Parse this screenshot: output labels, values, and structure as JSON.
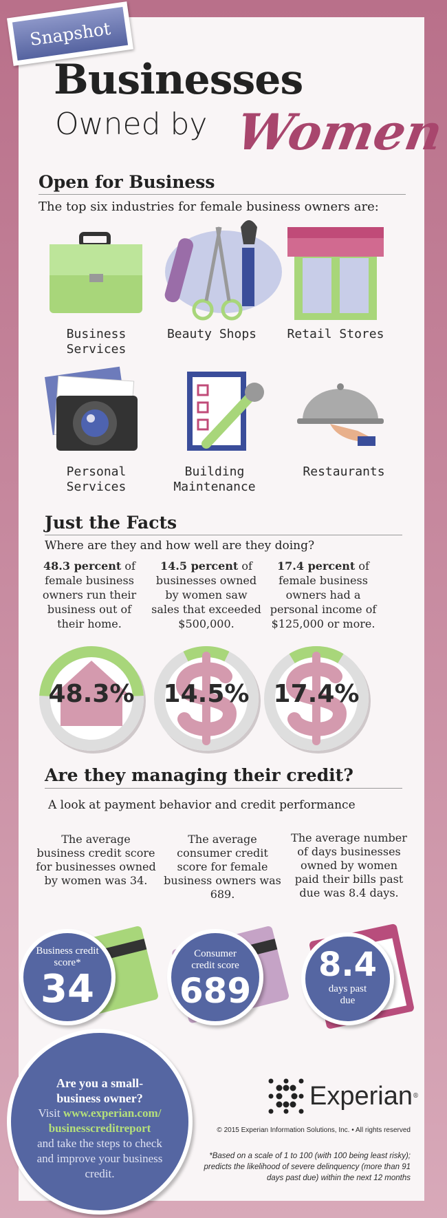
{
  "header": {
    "tag": "Snapshot",
    "title_line1": "Businesses",
    "title_line2": "Owned by",
    "title_script": "Women"
  },
  "open": {
    "heading": "Open for Business",
    "subtitle": "The top six industries for female business owners are:",
    "industries": [
      {
        "label": "Business Services",
        "icon": "briefcase-icon"
      },
      {
        "label": "Beauty Shops",
        "icon": "comb-scissors-brush-icon"
      },
      {
        "label": "Retail Stores",
        "icon": "storefront-icon"
      },
      {
        "label": "Personal Services",
        "icon": "camera-icon"
      },
      {
        "label": "Building Maintenance",
        "icon": "clipboard-wrench-icon"
      },
      {
        "label": "Restaurants",
        "icon": "serving-cloche-icon"
      }
    ]
  },
  "facts": {
    "heading": "Just the Facts",
    "subtitle": "Where are they and how well are they doing?",
    "items": [
      {
        "bold": "48.3 percent",
        "text": " of female business owners run their business out of their home.",
        "value": "48.3%",
        "percent": 48.3,
        "icon": "house-icon"
      },
      {
        "bold": "14.5 percent",
        "text": " of businesses owned by women saw sales that exceeded $500,000.",
        "value": "14.5%",
        "percent": 14.5,
        "icon": "dollar-icon"
      },
      {
        "bold": "17.4 percent",
        "text": " of female business owners had a personal income of $125,000 or more.",
        "value": "17.4%",
        "percent": 17.4,
        "icon": "dollar-icon"
      }
    ]
  },
  "credit": {
    "heading": "Are they managing their credit?",
    "subtitle": "A look at payment behavior and credit performance",
    "items": [
      {
        "text": "The average business credit score for businesses owned by women was 34.",
        "label": "Business credit score*",
        "value": "34"
      },
      {
        "text": "The average consumer credit score for female business owners was 689.",
        "label": "Consumer credit score",
        "value": "689"
      },
      {
        "text": "The average number of days businesses owned by women paid their bills past due was 8.4 days.",
        "value": "8.4",
        "label": "days past due"
      }
    ]
  },
  "cta": {
    "line1": "Are you a small-business owner?",
    "visit": "Visit ",
    "url1": "www.experian.com/",
    "url2": "businesscreditreport",
    "rest": "and take the steps to check and improve your business credit."
  },
  "footer": {
    "brand": "Experian",
    "registered": "®",
    "copyright": "© 2015 Experian Information Solutions, Inc. • All rights reserved",
    "footnote": "*Based on a scale of 1 to 100 (with 100 being least risky); predicts the likelihood of severe delinquency (more than 91 days past due) within the next 12 months"
  },
  "colors": {
    "pink": "#b9708a",
    "blue": "#5566a2",
    "green": "#a8d67a",
    "script": "#a8466d",
    "ring": "#dedede"
  }
}
